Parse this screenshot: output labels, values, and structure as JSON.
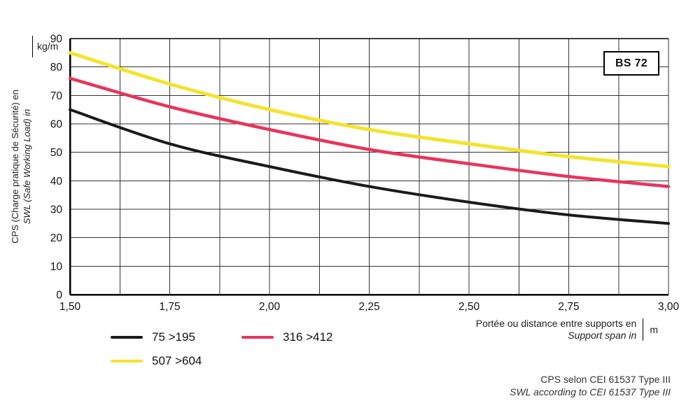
{
  "chart_data": {
    "type": "line",
    "title": "",
    "x": [
      1.5,
      1.75,
      2.0,
      2.25,
      2.5,
      2.75,
      3.0
    ],
    "series": [
      {
        "name": "75 >195",
        "color": "#1a1a1a",
        "values": [
          65,
          53,
          45,
          38,
          32.5,
          28,
          25
        ]
      },
      {
        "name": "316 >412",
        "color": "#e8345c",
        "values": [
          76,
          66,
          58,
          51,
          46,
          41.5,
          38
        ]
      },
      {
        "name": "507 >604",
        "color": "#f3e42e",
        "values": [
          85,
          74,
          65,
          58,
          53,
          48.5,
          45
        ]
      }
    ],
    "xlim": [
      1.5,
      3.0
    ],
    "ylim": [
      0,
      90
    ],
    "x_major_step": 0.25,
    "x_minor_step": 0.125,
    "y_step": 10,
    "x_tick_labels": [
      "1,50",
      "1,75",
      "2,00",
      "2,25",
      "2,50",
      "2,75",
      "3,00"
    ],
    "y_tick_labels": [
      "0",
      "10",
      "20",
      "30",
      "40",
      "50",
      "60",
      "70",
      "80",
      "90"
    ],
    "grid": true,
    "grid_color": "#333333",
    "legend_position": "bottom-left",
    "background": "#ffffff"
  },
  "labels": {
    "badge": "BS 72",
    "y_axis_line1": "CPS (Charge pratique de Sécurité) en",
    "y_axis_line2": "SWL (Safe Working Load) in",
    "y_axis_unit": "kg/m",
    "x_axis_line1": "Portée ou distance entre supports en",
    "x_axis_line2": "Support span in",
    "x_axis_unit": "m",
    "footer_line1": "CPS selon CEI 61537 Type III",
    "footer_line2": "SWL according to CEI 61537 Type III"
  }
}
